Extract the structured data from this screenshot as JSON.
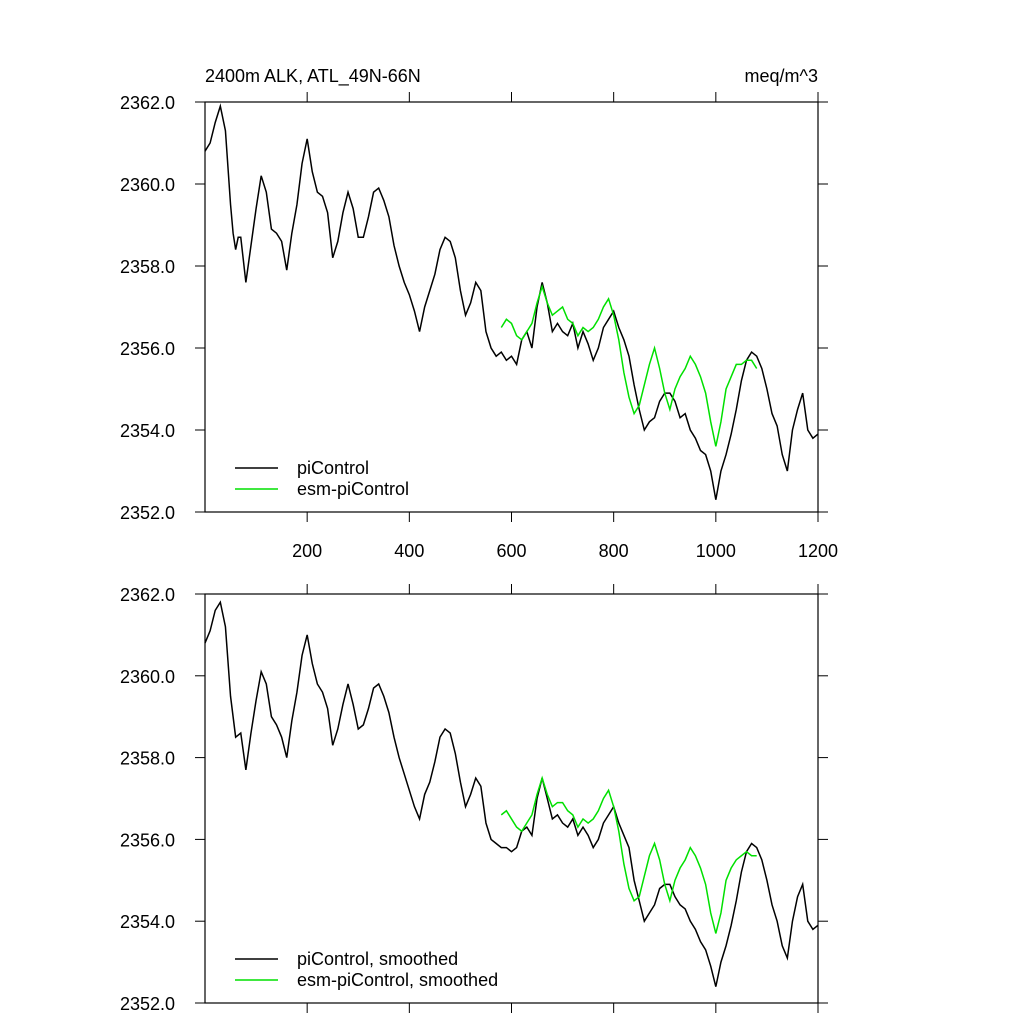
{
  "chart_data": [
    {
      "type": "line",
      "title": "2400m ALK, ATL_49N-66N",
      "units": "meq/m^3",
      "xlim": [
        0,
        1200
      ],
      "xticks": [
        200,
        400,
        600,
        800,
        1000,
        1200
      ],
      "show_xtick_labels": true,
      "ylim": [
        2352,
        2362
      ],
      "yticks": [
        {
          "value": 2352,
          "label": "2352.0"
        },
        {
          "value": 2354,
          "label": "2354.0"
        },
        {
          "value": 2356,
          "label": "2356.0"
        },
        {
          "value": 2358,
          "label": "2358.0"
        },
        {
          "value": 2360,
          "label": "2360.0"
        },
        {
          "value": 2362,
          "label": "2362.0"
        }
      ],
      "legend": "lower-left",
      "series": [
        {
          "name": "piControl",
          "color": "#000000",
          "x": [
            0,
            10,
            20,
            30,
            40,
            50,
            55,
            60,
            65,
            70,
            80,
            90,
            100,
            110,
            120,
            130,
            140,
            150,
            160,
            170,
            180,
            190,
            200,
            210,
            220,
            230,
            240,
            250,
            260,
            270,
            280,
            290,
            300,
            310,
            320,
            330,
            340,
            350,
            360,
            370,
            380,
            390,
            400,
            410,
            420,
            430,
            440,
            450,
            460,
            470,
            480,
            490,
            500,
            510,
            520,
            530,
            540,
            550,
            560,
            570,
            580,
            590,
            600,
            610,
            620,
            630,
            640,
            650,
            660,
            670,
            680,
            690,
            700,
            710,
            720,
            730,
            740,
            750,
            760,
            770,
            780,
            790,
            800,
            810,
            820,
            830,
            840,
            850,
            860,
            870,
            880,
            890,
            900,
            910,
            920,
            930,
            940,
            950,
            960,
            970,
            980,
            990,
            1000,
            1010,
            1020,
            1030,
            1040,
            1050,
            1060,
            1070,
            1080,
            1090,
            1100,
            1110,
            1120,
            1130,
            1140,
            1150,
            1160,
            1170,
            1180,
            1190,
            1200
          ],
          "values": [
            2360.8,
            2361.0,
            2361.5,
            2361.9,
            2361.3,
            2359.5,
            2358.8,
            2358.4,
            2358.7,
            2358.7,
            2357.6,
            2358.5,
            2359.4,
            2360.2,
            2359.8,
            2358.9,
            2358.8,
            2358.6,
            2357.9,
            2358.8,
            2359.5,
            2360.5,
            2361.1,
            2360.3,
            2359.8,
            2359.7,
            2359.3,
            2358.2,
            2358.6,
            2359.3,
            2359.8,
            2359.4,
            2358.7,
            2358.7,
            2359.2,
            2359.8,
            2359.9,
            2359.6,
            2359.2,
            2358.5,
            2358.0,
            2357.6,
            2357.3,
            2356.9,
            2356.4,
            2357.0,
            2357.4,
            2357.8,
            2358.4,
            2358.7,
            2358.6,
            2358.2,
            2357.4,
            2356.8,
            2357.1,
            2357.6,
            2357.4,
            2356.4,
            2356.0,
            2355.8,
            2355.9,
            2355.7,
            2355.8,
            2355.6,
            2356.2,
            2356.4,
            2356.0,
            2357.0,
            2357.6,
            2357.1,
            2356.4,
            2356.6,
            2356.4,
            2356.3,
            2356.6,
            2356.0,
            2356.4,
            2356.1,
            2355.7,
            2356.0,
            2356.5,
            2356.7,
            2356.9,
            2356.5,
            2356.2,
            2355.8,
            2355.1,
            2354.5,
            2354.0,
            2354.2,
            2354.3,
            2354.7,
            2354.9,
            2354.9,
            2354.7,
            2354.3,
            2354.4,
            2354.0,
            2353.8,
            2353.5,
            2353.4,
            2353.0,
            2352.3,
            2353.0,
            2353.4,
            2353.9,
            2354.5,
            2355.2,
            2355.7,
            2355.9,
            2355.8,
            2355.5,
            2355.0,
            2354.4,
            2354.1,
            2353.4,
            2353.0,
            2354.0,
            2354.5,
            2354.9,
            2354.0,
            2353.8,
            2353.9
          ]
        },
        {
          "name": "esm-piControl",
          "color": "#00e000",
          "x": [
            580,
            590,
            600,
            610,
            620,
            630,
            640,
            650,
            660,
            670,
            680,
            690,
            700,
            710,
            720,
            730,
            740,
            750,
            760,
            770,
            780,
            790,
            800,
            810,
            820,
            830,
            840,
            850,
            860,
            870,
            880,
            890,
            900,
            910,
            920,
            930,
            940,
            950,
            960,
            970,
            980,
            990,
            1000,
            1010,
            1020,
            1030,
            1040,
            1050,
            1060,
            1070,
            1080
          ],
          "values": [
            2356.5,
            2356.7,
            2356.6,
            2356.3,
            2356.2,
            2356.4,
            2356.6,
            2357.1,
            2357.5,
            2357.1,
            2356.8,
            2356.9,
            2357.0,
            2356.7,
            2356.6,
            2356.3,
            2356.5,
            2356.4,
            2356.5,
            2356.7,
            2357.0,
            2357.2,
            2356.8,
            2356.2,
            2355.4,
            2354.8,
            2354.4,
            2354.6,
            2355.1,
            2355.6,
            2356.0,
            2355.5,
            2354.9,
            2354.5,
            2355.0,
            2355.3,
            2355.5,
            2355.8,
            2355.6,
            2355.3,
            2354.9,
            2354.2,
            2353.6,
            2354.2,
            2355.0,
            2355.3,
            2355.6,
            2355.6,
            2355.7,
            2355.7,
            2355.5
          ]
        }
      ]
    },
    {
      "type": "line",
      "xlim": [
        0,
        1200
      ],
      "xticks": [
        200,
        400,
        600,
        800,
        1000,
        1200
      ],
      "show_xtick_labels": false,
      "ylim": [
        2352,
        2362
      ],
      "yticks": [
        {
          "value": 2352,
          "label": "2352.0"
        },
        {
          "value": 2354,
          "label": "2354.0"
        },
        {
          "value": 2356,
          "label": "2356.0"
        },
        {
          "value": 2358,
          "label": "2358.0"
        },
        {
          "value": 2360,
          "label": "2360.0"
        },
        {
          "value": 2362,
          "label": "2362.0"
        }
      ],
      "legend": "lower-left",
      "series": [
        {
          "name": "piControl, smoothed",
          "color": "#000000",
          "x": [
            0,
            10,
            20,
            30,
            40,
            50,
            60,
            70,
            80,
            90,
            100,
            110,
            120,
            130,
            140,
            150,
            160,
            170,
            180,
            190,
            200,
            210,
            220,
            230,
            240,
            250,
            260,
            270,
            280,
            290,
            300,
            310,
            320,
            330,
            340,
            350,
            360,
            370,
            380,
            390,
            400,
            410,
            420,
            430,
            440,
            450,
            460,
            470,
            480,
            490,
            500,
            510,
            520,
            530,
            540,
            550,
            560,
            570,
            580,
            590,
            600,
            610,
            620,
            630,
            640,
            650,
            660,
            670,
            680,
            690,
            700,
            710,
            720,
            730,
            740,
            750,
            760,
            770,
            780,
            790,
            800,
            810,
            820,
            830,
            840,
            850,
            860,
            870,
            880,
            890,
            900,
            910,
            920,
            930,
            940,
            950,
            960,
            970,
            980,
            990,
            1000,
            1010,
            1020,
            1030,
            1040,
            1050,
            1060,
            1070,
            1080,
            1090,
            1100,
            1110,
            1120,
            1130,
            1140,
            1150,
            1160,
            1170,
            1180,
            1190,
            1200
          ],
          "values": [
            2360.8,
            2361.1,
            2361.6,
            2361.8,
            2361.2,
            2359.5,
            2358.5,
            2358.6,
            2357.7,
            2358.6,
            2359.4,
            2360.1,
            2359.8,
            2359.0,
            2358.8,
            2358.5,
            2358.0,
            2358.9,
            2359.6,
            2360.5,
            2361.0,
            2360.3,
            2359.8,
            2359.6,
            2359.2,
            2358.3,
            2358.7,
            2359.3,
            2359.8,
            2359.3,
            2358.7,
            2358.8,
            2359.2,
            2359.7,
            2359.8,
            2359.5,
            2359.1,
            2358.5,
            2358.0,
            2357.6,
            2357.2,
            2356.8,
            2356.5,
            2357.1,
            2357.4,
            2357.9,
            2358.5,
            2358.7,
            2358.6,
            2358.1,
            2357.4,
            2356.8,
            2357.1,
            2357.5,
            2357.3,
            2356.4,
            2356.0,
            2355.9,
            2355.8,
            2355.8,
            2355.7,
            2355.8,
            2356.2,
            2356.3,
            2356.1,
            2357.0,
            2357.5,
            2357.0,
            2356.5,
            2356.6,
            2356.4,
            2356.3,
            2356.5,
            2356.1,
            2356.3,
            2356.1,
            2355.8,
            2356.0,
            2356.4,
            2356.6,
            2356.8,
            2356.4,
            2356.1,
            2355.8,
            2355.0,
            2354.5,
            2354.0,
            2354.2,
            2354.4,
            2354.8,
            2354.9,
            2354.9,
            2354.6,
            2354.4,
            2354.3,
            2354.0,
            2353.8,
            2353.5,
            2353.3,
            2352.9,
            2352.4,
            2353.0,
            2353.4,
            2353.9,
            2354.5,
            2355.2,
            2355.7,
            2355.9,
            2355.8,
            2355.5,
            2355.0,
            2354.4,
            2354.0,
            2353.4,
            2353.1,
            2354.0,
            2354.6,
            2354.9,
            2354.0,
            2353.8,
            2353.9
          ]
        },
        {
          "name": "esm-piControl, smoothed",
          "color": "#00e000",
          "x": [
            580,
            590,
            600,
            610,
            620,
            630,
            640,
            650,
            660,
            670,
            680,
            690,
            700,
            710,
            720,
            730,
            740,
            750,
            760,
            770,
            780,
            790,
            800,
            810,
            820,
            830,
            840,
            850,
            860,
            870,
            880,
            890,
            900,
            910,
            920,
            930,
            940,
            950,
            960,
            970,
            980,
            990,
            1000,
            1010,
            1020,
            1030,
            1040,
            1050,
            1060,
            1070,
            1080
          ],
          "values": [
            2356.6,
            2356.7,
            2356.5,
            2356.3,
            2356.2,
            2356.4,
            2356.6,
            2357.1,
            2357.5,
            2357.1,
            2356.8,
            2356.9,
            2356.9,
            2356.7,
            2356.6,
            2356.3,
            2356.5,
            2356.4,
            2356.5,
            2356.7,
            2357.0,
            2357.2,
            2356.8,
            2356.2,
            2355.4,
            2354.8,
            2354.5,
            2354.6,
            2355.1,
            2355.6,
            2355.9,
            2355.5,
            2354.9,
            2354.5,
            2355.0,
            2355.3,
            2355.5,
            2355.8,
            2355.6,
            2355.3,
            2354.9,
            2354.2,
            2353.7,
            2354.2,
            2355.0,
            2355.3,
            2355.5,
            2355.6,
            2355.7,
            2355.6,
            2355.6
          ]
        }
      ]
    }
  ]
}
